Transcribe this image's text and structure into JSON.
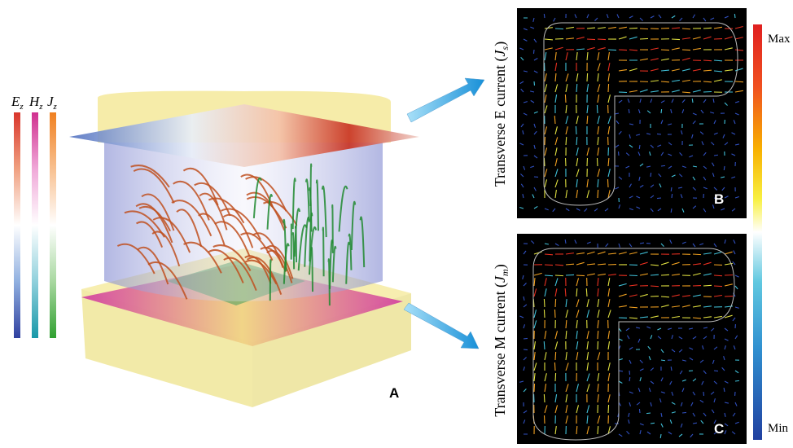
{
  "legend": {
    "fields": [
      {
        "symbol": "E",
        "subscript": "z"
      },
      {
        "symbol": "H",
        "subscript": "z"
      },
      {
        "symbol": "J",
        "subscript": "z"
      }
    ]
  },
  "panels": [
    {
      "label": "A"
    },
    {
      "label": "B",
      "title": {
        "text": "Transverse E current",
        "open": "(",
        "symbol": "J",
        "subscript": "s",
        "close": ")"
      }
    },
    {
      "label": "C",
      "title": {
        "text": "Transverse M current",
        "open": "(",
        "symbol": "J",
        "subscript": "m",
        "close": ")"
      }
    }
  ],
  "colorbar": {
    "max": "Max",
    "min": "Min"
  }
}
